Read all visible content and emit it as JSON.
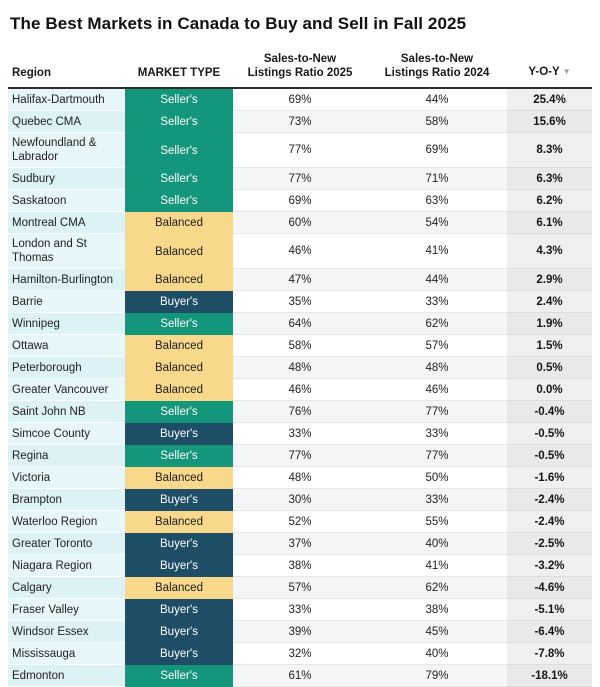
{
  "title": "The Best Markets in Canada to Buy and Sell in Fall 2025",
  "columns": {
    "region": "Region",
    "market_type": "MARKET TYPE",
    "ratio_2025_line1": "Sales-to-New",
    "ratio_2025_line2": "Listings Ratio 2025",
    "ratio_2024_line1": "Sales-to-New",
    "ratio_2024_line2": "Listings Ratio 2024",
    "yoy": "Y-O-Y",
    "sort_icon": "▼"
  },
  "market_colors": {
    "Seller's": {
      "bg": "#14967b",
      "text": "#ffffff"
    },
    "Buyer's": {
      "bg": "#1e4e66",
      "text": "#ffffff"
    },
    "Balanced": {
      "bg": "#f8d88b",
      "text": "#1c1c1c"
    }
  },
  "rows": [
    {
      "region": "Halifax-Dartmouth",
      "market": "Seller's",
      "ratio_2025": "69%",
      "ratio_2024": "44%",
      "yoy": "25.4%"
    },
    {
      "region": "Quebec CMA",
      "market": "Seller's",
      "ratio_2025": "73%",
      "ratio_2024": "58%",
      "yoy": "15.6%"
    },
    {
      "region": "Newfoundland & Labrador",
      "market": "Seller's",
      "ratio_2025": "77%",
      "ratio_2024": "69%",
      "yoy": "8.3%"
    },
    {
      "region": "Sudbury",
      "market": "Seller's",
      "ratio_2025": "77%",
      "ratio_2024": "71%",
      "yoy": "6.3%"
    },
    {
      "region": "Saskatoon",
      "market": "Seller's",
      "ratio_2025": "69%",
      "ratio_2024": "63%",
      "yoy": "6.2%"
    },
    {
      "region": "Montreal CMA",
      "market": "Balanced",
      "ratio_2025": "60%",
      "ratio_2024": "54%",
      "yoy": "6.1%"
    },
    {
      "region": "London and St Thomas",
      "market": "Balanced",
      "ratio_2025": "46%",
      "ratio_2024": "41%",
      "yoy": "4.3%"
    },
    {
      "region": "Hamilton-Burlington",
      "market": "Balanced",
      "ratio_2025": "47%",
      "ratio_2024": "44%",
      "yoy": "2.9%"
    },
    {
      "region": "Barrie",
      "market": "Buyer's",
      "ratio_2025": "35%",
      "ratio_2024": "33%",
      "yoy": "2.4%"
    },
    {
      "region": "Winnipeg",
      "market": "Seller's",
      "ratio_2025": "64%",
      "ratio_2024": "62%",
      "yoy": "1.9%"
    },
    {
      "region": "Ottawa",
      "market": "Balanced",
      "ratio_2025": "58%",
      "ratio_2024": "57%",
      "yoy": "1.5%"
    },
    {
      "region": "Peterborough",
      "market": "Balanced",
      "ratio_2025": "48%",
      "ratio_2024": "48%",
      "yoy": "0.5%"
    },
    {
      "region": "Greater Vancouver",
      "market": "Balanced",
      "ratio_2025": "46%",
      "ratio_2024": "46%",
      "yoy": "0.0%"
    },
    {
      "region": "Saint John NB",
      "market": "Seller's",
      "ratio_2025": "76%",
      "ratio_2024": "77%",
      "yoy": "-0.4%"
    },
    {
      "region": "Simcoe County",
      "market": "Buyer's",
      "ratio_2025": "33%",
      "ratio_2024": "33%",
      "yoy": "-0.5%"
    },
    {
      "region": "Regina",
      "market": "Seller's",
      "ratio_2025": "77%",
      "ratio_2024": "77%",
      "yoy": "-0.5%"
    },
    {
      "region": "Victoria",
      "market": "Balanced",
      "ratio_2025": "48%",
      "ratio_2024": "50%",
      "yoy": "-1.6%"
    },
    {
      "region": "Brampton",
      "market": "Buyer's",
      "ratio_2025": "30%",
      "ratio_2024": "33%",
      "yoy": "-2.4%"
    },
    {
      "region": "Waterloo Region",
      "market": "Balanced",
      "ratio_2025": "52%",
      "ratio_2024": "55%",
      "yoy": "-2.4%"
    },
    {
      "region": "Greater Toronto",
      "market": "Buyer's",
      "ratio_2025": "37%",
      "ratio_2024": "40%",
      "yoy": "-2.5%"
    },
    {
      "region": "Niagara Region",
      "market": "Buyer's",
      "ratio_2025": "38%",
      "ratio_2024": "41%",
      "yoy": "-3.2%"
    },
    {
      "region": "Calgary",
      "market": "Balanced",
      "ratio_2025": "57%",
      "ratio_2024": "62%",
      "yoy": "-4.6%"
    },
    {
      "region": "Fraser Valley",
      "market": "Buyer's",
      "ratio_2025": "33%",
      "ratio_2024": "38%",
      "yoy": "-5.1%"
    },
    {
      "region": "Windsor Essex",
      "market": "Buyer's",
      "ratio_2025": "39%",
      "ratio_2024": "45%",
      "yoy": "-6.4%"
    },
    {
      "region": "Mississauga",
      "market": "Buyer's",
      "ratio_2025": "32%",
      "ratio_2024": "40%",
      "yoy": "-7.8%"
    },
    {
      "region": "Edmonton",
      "market": "Seller's",
      "ratio_2025": "61%",
      "ratio_2024": "79%",
      "yoy": "-18.1%"
    }
  ]
}
